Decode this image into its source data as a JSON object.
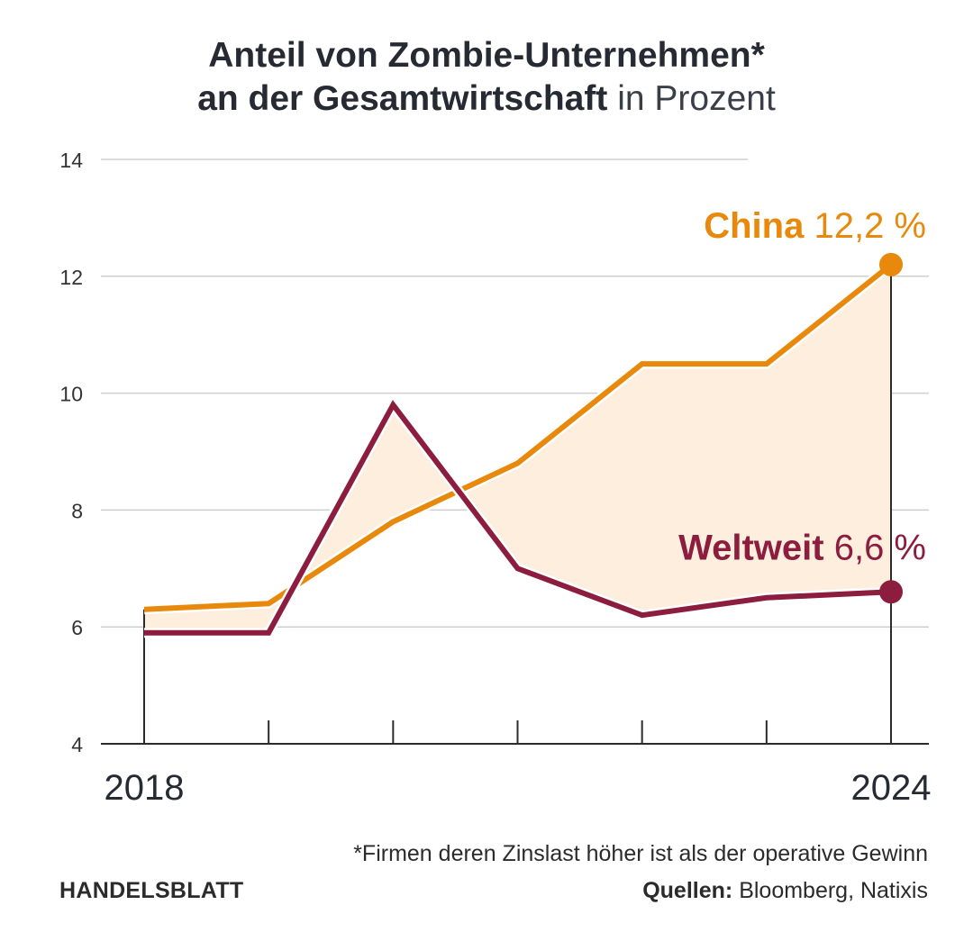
{
  "header": {
    "title_line1": "Anteil von Zombie-Unternehmen*",
    "title_line2_bold": "an der Gesamtwirtschaft",
    "title_line2_normal": "in Prozent"
  },
  "chart_data": {
    "type": "line",
    "title": "Anteil von Zombie-Unternehmen* an der Gesamtwirtschaft in Prozent",
    "x": [
      2018,
      2019,
      2020,
      2021,
      2022,
      2023,
      2024
    ],
    "x_tick_labels": [
      "2018",
      "2024"
    ],
    "ylim": [
      4,
      14
    ],
    "y_ticks": [
      4,
      6,
      8,
      10,
      12,
      14
    ],
    "grid": true,
    "series": [
      {
        "name": "China",
        "color": "#e8890c",
        "values": [
          6.3,
          6.4,
          7.8,
          8.8,
          10.5,
          10.5,
          12.2
        ],
        "end_label": "12,2 %"
      },
      {
        "name": "Weltweit",
        "color": "#8c1d3f",
        "values": [
          5.9,
          5.9,
          9.8,
          7.0,
          6.2,
          6.5,
          6.6
        ],
        "end_label": "6,6 %"
      }
    ],
    "fill_between_color": "#fdeedd"
  },
  "footer": {
    "footnote": "*Firmen deren Zinslast höher ist als der operative Gewinn",
    "brand": "HANDELSBLATT",
    "source_label": "Quellen:",
    "source_text": "Bloomberg, Natixis"
  }
}
